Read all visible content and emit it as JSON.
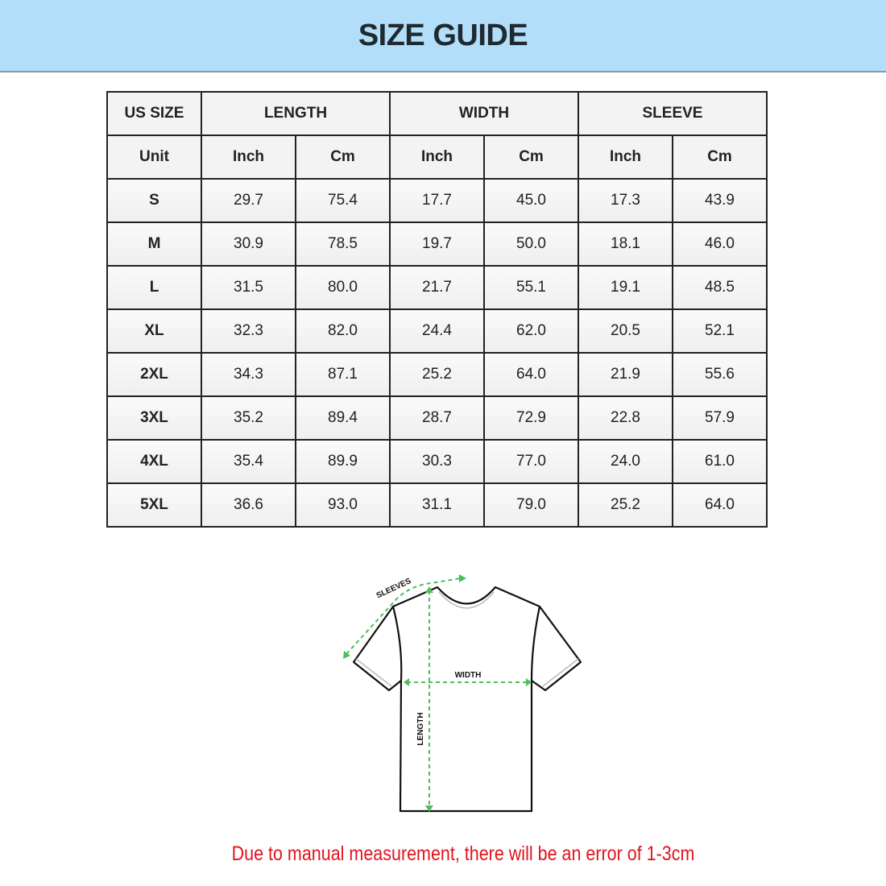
{
  "title": "SIZE GUIDE",
  "table": {
    "headers": [
      "US SIZE",
      "LENGTH",
      "WIDTH",
      "SLEEVE"
    ],
    "units": [
      "Unit",
      "Inch",
      "Cm",
      "Inch",
      "Cm",
      "Inch",
      "Cm"
    ],
    "rows": [
      [
        "S",
        "29.7",
        "75.4",
        "17.7",
        "45.0",
        "17.3",
        "43.9"
      ],
      [
        "M",
        "30.9",
        "78.5",
        "19.7",
        "50.0",
        "18.1",
        "46.0"
      ],
      [
        "L",
        "31.5",
        "80.0",
        "21.7",
        "55.1",
        "19.1",
        "48.5"
      ],
      [
        "XL",
        "32.3",
        "82.0",
        "24.4",
        "62.0",
        "20.5",
        "52.1"
      ],
      [
        "2XL",
        "34.3",
        "87.1",
        "25.2",
        "64.0",
        "21.9",
        "55.6"
      ],
      [
        "3XL",
        "35.2",
        "89.4",
        "28.7",
        "72.9",
        "22.8",
        "57.9"
      ],
      [
        "4XL",
        "35.4",
        "89.9",
        "30.3",
        "77.0",
        "24.0",
        "61.0"
      ],
      [
        "5XL",
        "36.6",
        "93.0",
        "31.1",
        "79.0",
        "25.2",
        "64.0"
      ]
    ]
  },
  "diagram": {
    "labels": {
      "sleeves": "SLEEVES",
      "width": "WIDTH",
      "length": "LENGTH"
    }
  },
  "note": "Due to manual measurement, there will be an error of 1-3cm",
  "colors": {
    "banner": "#b3defa",
    "note": "#e0141e",
    "measure_lines": "#4cbf5a"
  }
}
